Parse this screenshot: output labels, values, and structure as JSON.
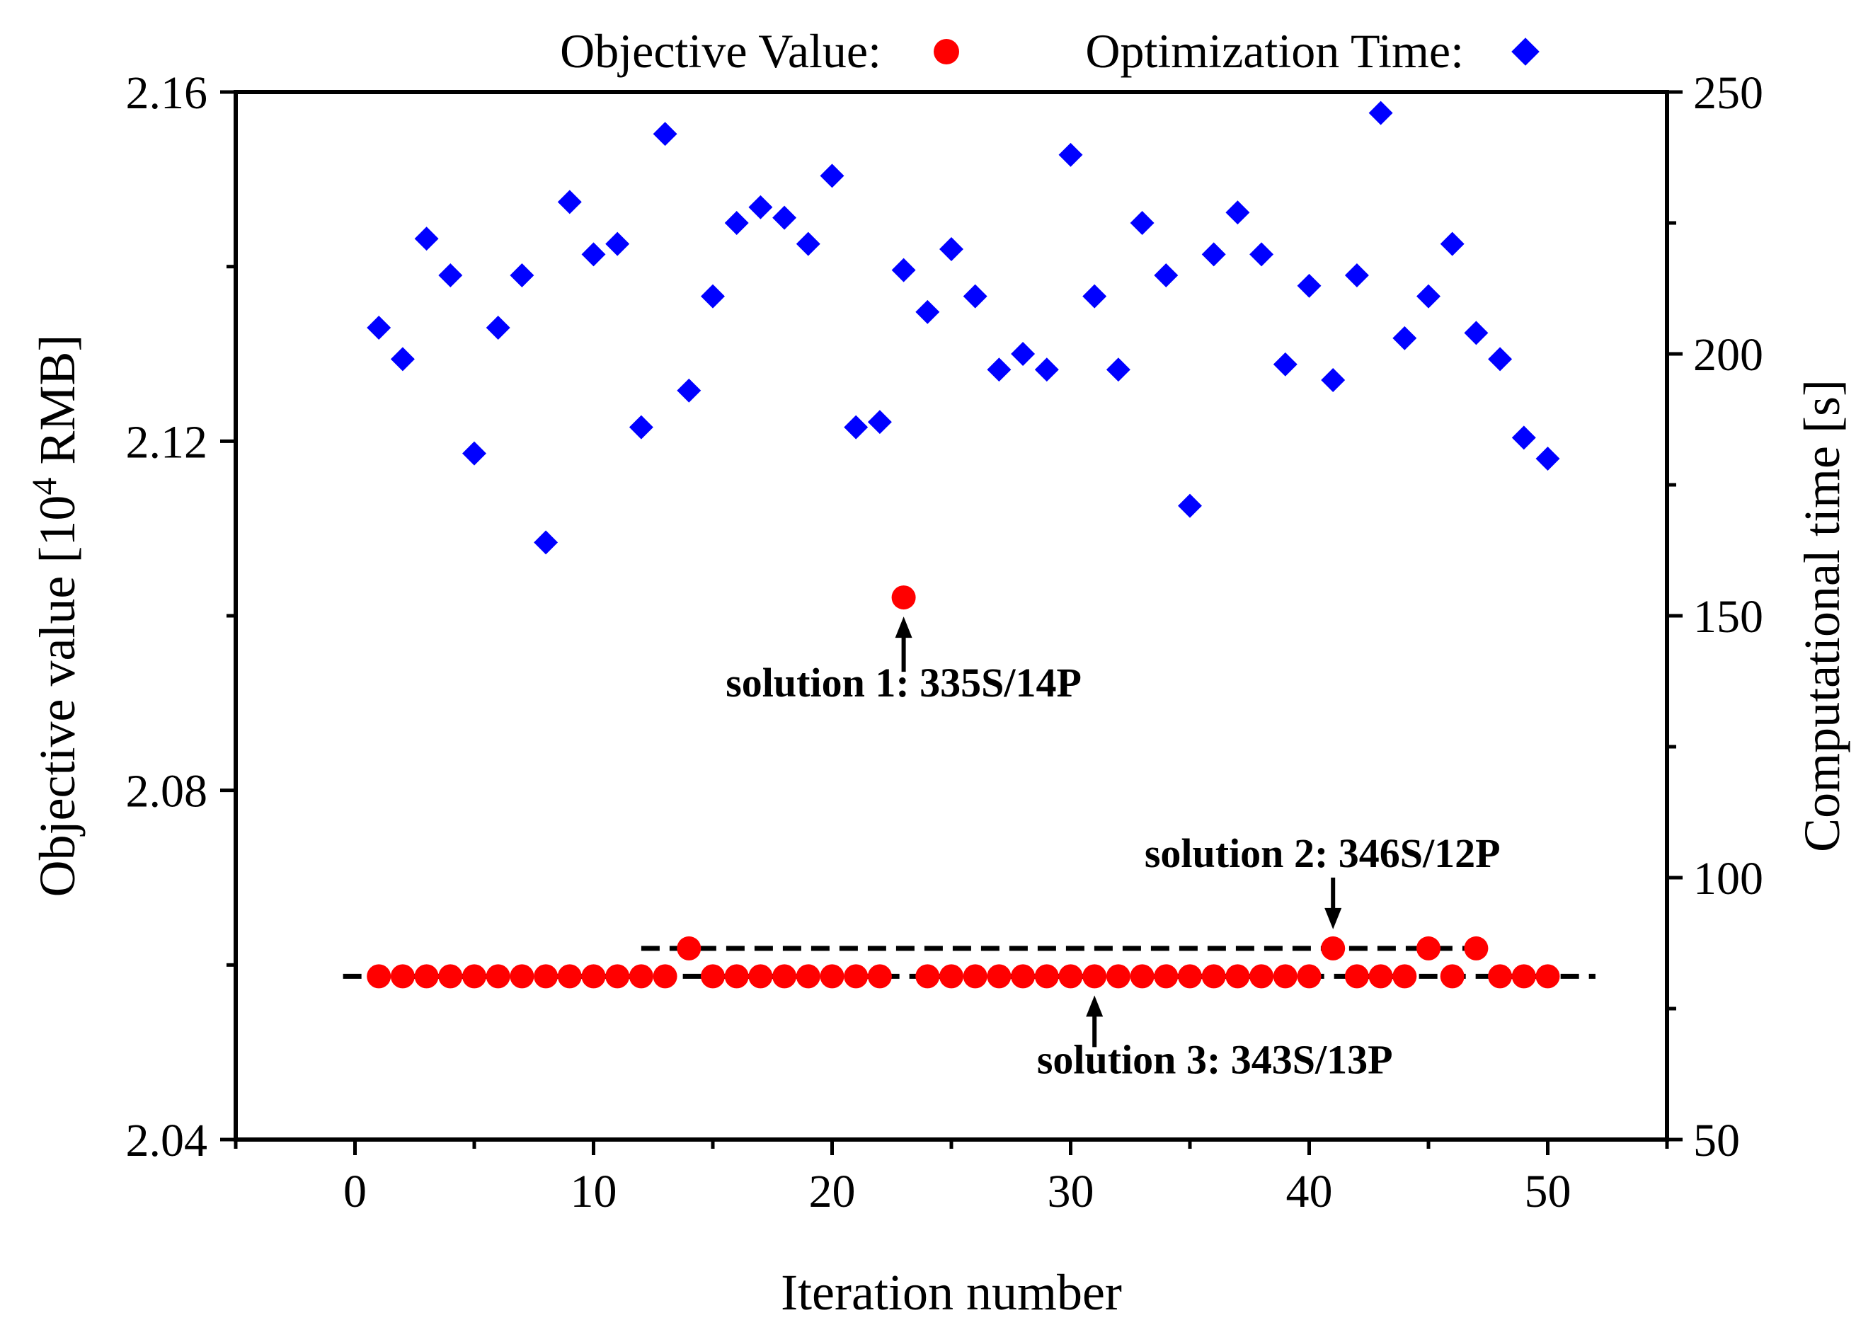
{
  "chart_data": {
    "type": "scatter",
    "xlabel": "Iteration number",
    "ylabel_left_prefix": "Objective value [10",
    "ylabel_left_sup": "4",
    "ylabel_left_suffix": " RMB]",
    "ylabel_right": "Computational time [s]",
    "xlim": [
      -5,
      55
    ],
    "ylim_left": [
      2.04,
      2.16
    ],
    "ylim_right": [
      50,
      250
    ],
    "x_ticks": [
      0,
      10,
      20,
      30,
      40,
      50
    ],
    "x_tick_labels": [
      "0",
      "10",
      "20",
      "30",
      "40",
      "50"
    ],
    "y_left_ticks": [
      2.04,
      2.08,
      2.12,
      2.16
    ],
    "y_left_tick_labels": [
      "2.04",
      "2.08",
      "2.12",
      "2.16"
    ],
    "y_right_ticks": [
      50,
      100,
      150,
      200,
      250
    ],
    "y_right_tick_labels": [
      "50",
      "100",
      "150",
      "200",
      "250"
    ],
    "legend": {
      "placement": "top",
      "objective_label": "Objective Value:",
      "time_label": "Optimization Time:"
    },
    "colors": {
      "objective": "#ff0000",
      "time": "#0000ff",
      "axes": "#000000"
    },
    "series": [
      {
        "name": "Objective Value",
        "axis": "left",
        "marker": "circle",
        "x": [
          1,
          2,
          3,
          4,
          5,
          6,
          7,
          8,
          9,
          10,
          11,
          12,
          13,
          14,
          15,
          16,
          17,
          18,
          19,
          20,
          21,
          22,
          23,
          24,
          25,
          26,
          27,
          28,
          29,
          30,
          31,
          32,
          33,
          34,
          35,
          36,
          37,
          38,
          39,
          40,
          41,
          42,
          43,
          44,
          45,
          46,
          47,
          48,
          49,
          50
        ],
        "values": [
          2.0587,
          2.0587,
          2.0587,
          2.0587,
          2.0587,
          2.0587,
          2.0587,
          2.0587,
          2.0587,
          2.0587,
          2.0587,
          2.0587,
          2.0587,
          2.0619,
          2.0587,
          2.0587,
          2.0587,
          2.0587,
          2.0587,
          2.0587,
          2.0587,
          2.0587,
          2.1021,
          2.0587,
          2.0587,
          2.0587,
          2.0587,
          2.0587,
          2.0587,
          2.0587,
          2.0587,
          2.0587,
          2.0587,
          2.0587,
          2.0587,
          2.0587,
          2.0587,
          2.0587,
          2.0587,
          2.0587,
          2.0619,
          2.0587,
          2.0587,
          2.0587,
          2.0619,
          2.0587,
          2.0619,
          2.0587,
          2.0587,
          2.0587
        ]
      },
      {
        "name": "Optimization Time",
        "axis": "right",
        "marker": "diamond",
        "x": [
          1,
          2,
          3,
          4,
          5,
          6,
          7,
          8,
          9,
          10,
          11,
          12,
          13,
          14,
          15,
          16,
          17,
          18,
          19,
          20,
          21,
          22,
          23,
          24,
          25,
          26,
          27,
          28,
          29,
          30,
          31,
          32,
          33,
          34,
          35,
          36,
          37,
          38,
          39,
          40,
          41,
          42,
          43,
          44,
          45,
          46,
          47,
          48,
          49,
          50
        ],
        "values": [
          205,
          199,
          222,
          215,
          181,
          205,
          215,
          164,
          229,
          219,
          221,
          186,
          242,
          193,
          211,
          225,
          228,
          226,
          221,
          234,
          186,
          187,
          216,
          208,
          220,
          211,
          197,
          200,
          197,
          238,
          211,
          197,
          225,
          215,
          171,
          219,
          227,
          219,
          198,
          213,
          195,
          215,
          246,
          203,
          211,
          221,
          204,
          199,
          184,
          180
        ]
      }
    ],
    "reference_lines": [
      {
        "value": 2.0587,
        "x_start": -0.5,
        "x_end": 52,
        "style": "dashed"
      },
      {
        "value": 2.0619,
        "x_start": 12,
        "x_end": 47.5,
        "style": "dashed"
      }
    ],
    "annotations": [
      {
        "text": "solution 1: 335S/14P",
        "x": 23,
        "value": 2.1021,
        "arrow": "up"
      },
      {
        "text": "solution 2: 346S/12P",
        "x": 41,
        "value": 2.0619,
        "arrow": "down"
      },
      {
        "text": "solution 3: 343S/13P",
        "x": 31,
        "value": 2.0587,
        "arrow": "up"
      }
    ]
  }
}
